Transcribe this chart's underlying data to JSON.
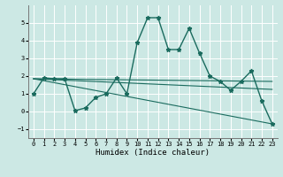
{
  "xlabel": "Humidex (Indice chaleur)",
  "ylabel": "",
  "xlim": [
    -0.5,
    23.5
  ],
  "ylim": [
    -1.5,
    6.0
  ],
  "yticks": [
    -1,
    0,
    1,
    2,
    3,
    4,
    5
  ],
  "xticks": [
    0,
    1,
    2,
    3,
    4,
    5,
    6,
    7,
    8,
    9,
    10,
    11,
    12,
    13,
    14,
    15,
    16,
    17,
    18,
    19,
    20,
    21,
    22,
    23
  ],
  "bg_color": "#cce8e4",
  "grid_color": "#ffffff",
  "line_color": "#1a6b5e",
  "line1_x": [
    0,
    1,
    2,
    3,
    4,
    5,
    6,
    7,
    8,
    9,
    10,
    11,
    12,
    13,
    14,
    15,
    16,
    17,
    18,
    19,
    20,
    21,
    22,
    23
  ],
  "line1_y": [
    1.0,
    1.9,
    1.85,
    1.85,
    0.05,
    0.2,
    0.8,
    1.0,
    1.9,
    1.0,
    3.9,
    5.3,
    5.3,
    3.5,
    3.5,
    4.7,
    3.3,
    2.0,
    1.7,
    1.2,
    1.7,
    2.3,
    0.6,
    -0.7
  ],
  "line2_x": [
    0,
    23
  ],
  "line2_y": [
    1.85,
    1.7
  ],
  "line3_x": [
    0,
    23
  ],
  "line3_y": [
    1.85,
    -0.7
  ],
  "line4_x": [
    0,
    23
  ],
  "line4_y": [
    1.85,
    1.25
  ]
}
